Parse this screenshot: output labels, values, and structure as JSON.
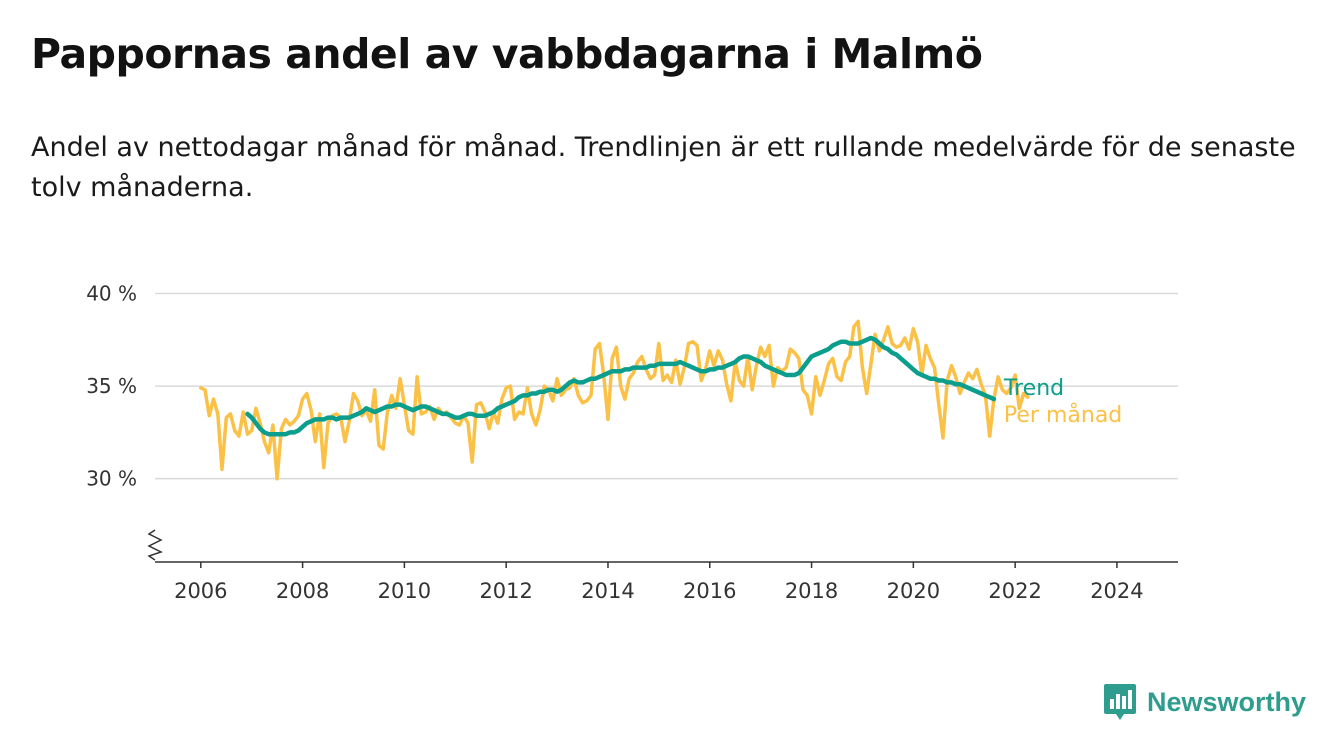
{
  "title": "Pappornas andel av vabbdagarna i Malmö",
  "subtitle": "Andel av nettodagar månad för månad. Trendlinjen är ett rullande medelvärde för de senaste tolv månaderna.",
  "brand": {
    "name": "Newsworthy",
    "icon": "newsworthy-logo-icon",
    "color": "#2f9d8e"
  },
  "colors": {
    "monthly": "#fbc146",
    "trend": "#0c9e8c",
    "grid": "#d9d9d9",
    "axis": "#333333"
  },
  "chart_data": {
    "type": "line",
    "title": "Pappornas andel av vabbdagarna i Malmö",
    "xlabel": "",
    "ylabel": "",
    "xlim": [
      2005.1,
      2025.2
    ],
    "ylim": [
      25.5,
      41
    ],
    "yticks": [
      30,
      35,
      40
    ],
    "ytick_labels": [
      "30 %",
      "35 %",
      "40 %"
    ],
    "xticks": [
      2006,
      2008,
      2010,
      2012,
      2014,
      2016,
      2018,
      2020,
      2022,
      2024
    ],
    "xtick_labels": [
      "2006",
      "2008",
      "2010",
      "2012",
      "2014",
      "2016",
      "2018",
      "2020",
      "2022",
      "2024"
    ],
    "axis_break": true,
    "grid": true,
    "legend": "direct labels at line ends (right)",
    "series": [
      {
        "name": "Per månad",
        "color": "#fbc146",
        "x_start": 2006.0,
        "x_step": 0.08333,
        "values": [
          34.9,
          34.8,
          33.4,
          34.3,
          33.5,
          30.5,
          33.3,
          33.5,
          32.6,
          32.3,
          33.6,
          32.4,
          32.6,
          33.8,
          33.0,
          32.0,
          31.4,
          32.9,
          30.0,
          32.7,
          33.2,
          32.9,
          33.1,
          33.4,
          34.3,
          34.6,
          33.7,
          32.0,
          33.5,
          30.6,
          33.0,
          33.4,
          33.5,
          33.3,
          32.0,
          33.1,
          34.6,
          34.2,
          33.4,
          33.7,
          33.1,
          34.8,
          31.8,
          31.6,
          33.6,
          34.5,
          33.8,
          35.4,
          34.0,
          32.6,
          32.4,
          35.5,
          33.5,
          33.6,
          33.9,
          33.2,
          33.8,
          33.5,
          33.6,
          33.3,
          33.0,
          32.9,
          33.4,
          33.0,
          30.9,
          34.0,
          34.1,
          33.6,
          32.7,
          33.6,
          33.0,
          34.3,
          34.9,
          35.0,
          33.2,
          33.6,
          33.5,
          34.9,
          33.5,
          32.9,
          33.7,
          35.0,
          34.8,
          34.2,
          35.4,
          34.5,
          34.8,
          34.9,
          35.4,
          34.5,
          34.1,
          34.2,
          34.5,
          37.0,
          37.3,
          35.6,
          33.2,
          36.5,
          37.1,
          35.0,
          34.3,
          35.4,
          35.7,
          36.3,
          36.6,
          35.9,
          35.4,
          35.6,
          37.3,
          35.3,
          35.6,
          35.2,
          36.4,
          35.1,
          36.0,
          37.3,
          37.4,
          37.2,
          35.3,
          35.9,
          36.9,
          36.1,
          36.9,
          36.4,
          35.1,
          34.2,
          36.3,
          35.3,
          35.0,
          36.6,
          34.8,
          36.1,
          37.1,
          36.6,
          37.2,
          35.0,
          36.0,
          35.8,
          36.0,
          37.0,
          36.8,
          36.5,
          34.8,
          34.5,
          33.5,
          35.5,
          34.5,
          35.3,
          36.2,
          36.5,
          35.5,
          35.3,
          36.3,
          36.6,
          38.2,
          38.5,
          36.0,
          34.6,
          36.2,
          37.8,
          36.9,
          37.5,
          38.2,
          37.3,
          37.1,
          37.2,
          37.6,
          37.0,
          38.1,
          37.4,
          35.6,
          37.2,
          36.5,
          36.0,
          34.0,
          32.2,
          35.3,
          36.1,
          35.5,
          34.6,
          35.2,
          35.7,
          35.4,
          35.9,
          35.1,
          34.5,
          32.3,
          34.3,
          35.5,
          34.8,
          34.6,
          34.9,
          35.6,
          33.8,
          34.6,
          34.4
        ]
      },
      {
        "name": "Trend",
        "color": "#0c9e8c",
        "x_start": 2006.917,
        "x_step": 0.08333,
        "values": [
          33.5,
          33.3,
          33.0,
          32.7,
          32.5,
          32.4,
          32.4,
          32.4,
          32.4,
          32.4,
          32.5,
          32.5,
          32.6,
          32.8,
          33.0,
          33.1,
          33.2,
          33.2,
          33.2,
          33.3,
          33.3,
          33.2,
          33.3,
          33.3,
          33.3,
          33.4,
          33.5,
          33.6,
          33.8,
          33.7,
          33.6,
          33.7,
          33.8,
          33.9,
          33.9,
          34.0,
          34.0,
          33.9,
          33.8,
          33.7,
          33.8,
          33.9,
          33.9,
          33.8,
          33.7,
          33.6,
          33.5,
          33.5,
          33.4,
          33.3,
          33.3,
          33.4,
          33.5,
          33.5,
          33.4,
          33.4,
          33.4,
          33.5,
          33.6,
          33.8,
          33.9,
          34.0,
          34.1,
          34.2,
          34.4,
          34.5,
          34.5,
          34.6,
          34.6,
          34.7,
          34.7,
          34.8,
          34.8,
          34.7,
          34.8,
          35.0,
          35.2,
          35.3,
          35.2,
          35.2,
          35.3,
          35.4,
          35.4,
          35.5,
          35.6,
          35.7,
          35.8,
          35.8,
          35.8,
          35.9,
          35.9,
          36.0,
          36.0,
          36.0,
          36.0,
          36.1,
          36.1,
          36.2,
          36.2,
          36.2,
          36.2,
          36.2,
          36.3,
          36.2,
          36.1,
          36.0,
          35.9,
          35.8,
          35.8,
          35.9,
          35.9,
          36.0,
          36.0,
          36.1,
          36.2,
          36.3,
          36.5,
          36.6,
          36.6,
          36.5,
          36.4,
          36.3,
          36.1,
          36.0,
          35.9,
          35.8,
          35.7,
          35.6,
          35.6,
          35.6,
          35.7,
          36.0,
          36.3,
          36.6,
          36.7,
          36.8,
          36.9,
          37.0,
          37.2,
          37.3,
          37.4,
          37.4,
          37.3,
          37.3,
          37.3,
          37.4,
          37.5,
          37.6,
          37.5,
          37.3,
          37.1,
          37.0,
          36.8,
          36.7,
          36.5,
          36.3,
          36.1,
          35.9,
          35.7,
          35.6,
          35.5,
          35.4,
          35.4,
          35.3,
          35.3,
          35.2,
          35.2,
          35.1,
          35.1,
          35.0,
          34.9,
          34.8,
          34.7,
          34.6,
          34.5,
          34.4,
          34.3
        ]
      }
    ]
  }
}
